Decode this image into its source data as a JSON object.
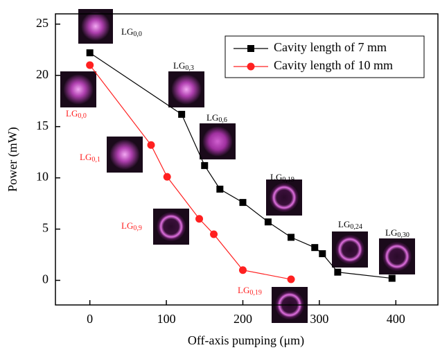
{
  "chart_data": {
    "type": "line",
    "x_label": "Off-axis pumping (μm)",
    "y_label": "Power (mW)",
    "xlim": [
      -45,
      455
    ],
    "ylim": [
      -2.4,
      26
    ],
    "xticks": [
      0,
      100,
      200,
      300,
      400
    ],
    "yticks": [
      0,
      5,
      10,
      15,
      20,
      25
    ],
    "legend": "upper right",
    "series": [
      {
        "name": "Cavity length of 7 mm",
        "color": "#000000",
        "marker": "square",
        "x": [
          0,
          120,
          150,
          170,
          200,
          233,
          263,
          294,
          304,
          324,
          395
        ],
        "values": [
          22.2,
          16.2,
          11.2,
          8.9,
          7.6,
          5.7,
          4.2,
          3.2,
          2.6,
          0.8,
          0.2
        ]
      },
      {
        "name": "Cavity length of 10 mm",
        "color": "#ff2020",
        "marker": "circle",
        "x": [
          0,
          80,
          101,
          143,
          162,
          200,
          263
        ],
        "values": [
          21.0,
          13.2,
          10.1,
          6.0,
          4.5,
          1.0,
          0.1
        ]
      }
    ],
    "annotations": [
      {
        "text": "LG",
        "sub": "0,0",
        "color": "#000000"
      },
      {
        "text": "LG",
        "sub": "0,0",
        "color": "#ff2020"
      },
      {
        "text": "LG",
        "sub": "0,3",
        "color": "#000000"
      },
      {
        "text": "LG",
        "sub": "0,6",
        "color": "#000000"
      },
      {
        "text": "LG",
        "sub": "0,1",
        "color": "#ff2020"
      },
      {
        "text": "LG",
        "sub": "0,19",
        "color": "#000000"
      },
      {
        "text": "LG",
        "sub": "0,9",
        "color": "#ff2020"
      },
      {
        "text": "LG",
        "sub": "0,24",
        "color": "#000000"
      },
      {
        "text": "LG",
        "sub": "0,30",
        "color": "#000000"
      },
      {
        "text": "LG",
        "sub": "0,19",
        "color": "#ff2020"
      }
    ]
  }
}
